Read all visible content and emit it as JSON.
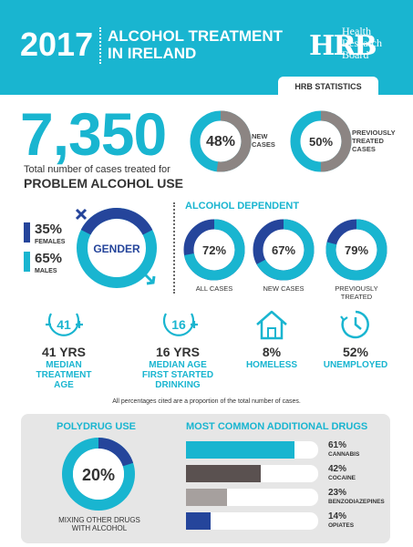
{
  "header": {
    "year": "2017",
    "title_line1": "ALCOHOL TREATMENT",
    "title_line2": "IN IRELAND",
    "logo_mark": "HRB",
    "logo_line1": "Health",
    "logo_line2": "Research",
    "logo_line3": "Board",
    "tab_label": "HRB STATISTICS"
  },
  "total": {
    "value": "7,350",
    "caption_line1": "Total number of cases treated for",
    "caption_line2": "PROBLEM ALCOHOL USE"
  },
  "case_rings": [
    {
      "pct_label": "48%",
      "fraction": 0.48,
      "label_line1": "NEW",
      "label_line2": "CASES",
      "label_line3": ""
    },
    {
      "pct_label": "50%",
      "fraction": 0.5,
      "label_line1": "PREVIOUSLY",
      "label_line2": "TREATED",
      "label_line3": "CASES"
    }
  ],
  "gender": {
    "title": "GENDER",
    "female_pct": "35%",
    "female_label": "FEMALES",
    "male_pct": "65%",
    "male_label": "MALES",
    "female_fraction": 0.35
  },
  "alcohol_dependent": {
    "title": "ALCOHOL DEPENDENT",
    "rings": [
      {
        "pct_label": "72%",
        "fraction": 0.72,
        "label_line1": "ALL CASES",
        "label_line2": ""
      },
      {
        "pct_label": "67%",
        "fraction": 0.67,
        "label_line1": "NEW CASES",
        "label_line2": ""
      },
      {
        "pct_label": "79%",
        "fraction": 0.79,
        "label_line1": "PREVIOUSLY",
        "label_line2": "TREATED"
      }
    ]
  },
  "stats": [
    {
      "icon_text": "41",
      "value": "41 YRS",
      "label_line1": "MEDIAN",
      "label_line2": "TREATMENT",
      "label_line3": "AGE"
    },
    {
      "icon_text": "16",
      "value": "16 YRS",
      "label_line1": "MEDIAN AGE",
      "label_line2": "FIRST STARTED",
      "label_line3": "DRINKING"
    },
    {
      "icon_text": "",
      "value": "8%",
      "label_line1": "HOMELESS",
      "label_line2": "",
      "label_line3": ""
    },
    {
      "icon_text": "",
      "value": "52%",
      "label_line1": "UNEMPLOYED",
      "label_line2": "",
      "label_line3": ""
    }
  ],
  "footnote": "All percentages cited are a proportion of the total number of cases.",
  "polydrug": {
    "title": "POLYDRUG USE",
    "pct_label": "20%",
    "fraction": 0.2,
    "caption_line1": "MIXING OTHER DRUGS",
    "caption_line2": "WITH ALCOHOL"
  },
  "drugs": {
    "title": "MOST COMMON ADDITIONAL DRUGS",
    "items": [
      {
        "pct_label": "61%",
        "fraction": 0.61,
        "name": "CANNABIS",
        "color": "#19b5d0"
      },
      {
        "pct_label": "42%",
        "fraction": 0.42,
        "name": "COCAINE",
        "color": "#5a5150"
      },
      {
        "pct_label": "23%",
        "fraction": 0.23,
        "name": "BENZODIAZEPINES",
        "color": "#a6a09e"
      },
      {
        "pct_label": "14%",
        "fraction": 0.14,
        "name": "OPIATES",
        "color": "#25459b"
      }
    ]
  },
  "colors": {
    "teal": "#19b5d0",
    "navy": "#25459b",
    "grey_ring": "#8c8583",
    "dark_text": "#333333"
  }
}
